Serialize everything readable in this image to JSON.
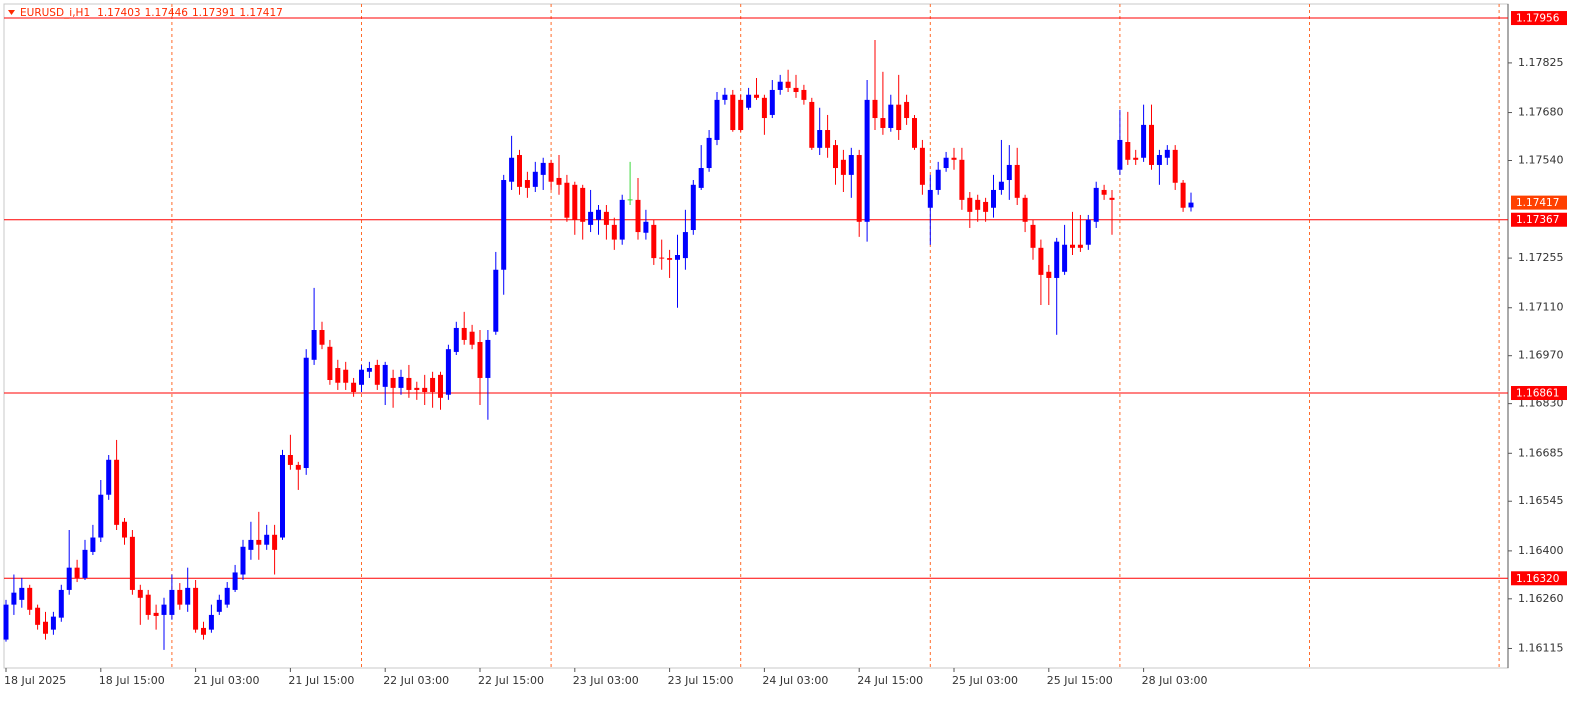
{
  "chart_data": {
    "type": "candlestick",
    "symbol": "EURUSD_i,H1",
    "candles": [
      {
        "o": 1.16141,
        "h": 1.16257,
        "l": 1.16135,
        "c": 1.16243
      },
      {
        "o": 1.16243,
        "h": 1.16331,
        "l": 1.16213,
        "c": 1.16278
      },
      {
        "o": 1.16257,
        "h": 1.16321,
        "l": 1.16234,
        "c": 1.16292
      },
      {
        "o": 1.16292,
        "h": 1.16301,
        "l": 1.16213,
        "c": 1.16228
      },
      {
        "o": 1.16234,
        "h": 1.16243,
        "l": 1.1617,
        "c": 1.16184
      },
      {
        "o": 1.16193,
        "h": 1.16222,
        "l": 1.16141,
        "c": 1.16158
      },
      {
        "o": 1.1617,
        "h": 1.16222,
        "l": 1.16155,
        "c": 1.16208
      },
      {
        "o": 1.16205,
        "h": 1.16301,
        "l": 1.16193,
        "c": 1.16286
      },
      {
        "o": 1.16286,
        "h": 1.16461,
        "l": 1.16272,
        "c": 1.16351
      },
      {
        "o": 1.16351,
        "h": 1.16374,
        "l": 1.16309,
        "c": 1.16321
      },
      {
        "o": 1.16321,
        "h": 1.16432,
        "l": 1.16315,
        "c": 1.16403
      },
      {
        "o": 1.16397,
        "h": 1.16476,
        "l": 1.16388,
        "c": 1.16439
      },
      {
        "o": 1.16439,
        "h": 1.16607,
        "l": 1.16426,
        "c": 1.16564
      },
      {
        "o": 1.16564,
        "h": 1.1668,
        "l": 1.16549,
        "c": 1.16666
      },
      {
        "o": 1.16666,
        "h": 1.16724,
        "l": 1.16461,
        "c": 1.16476
      },
      {
        "o": 1.16485,
        "h": 1.16496,
        "l": 1.16418,
        "c": 1.16439
      },
      {
        "o": 1.16441,
        "h": 1.16461,
        "l": 1.16272,
        "c": 1.16286
      },
      {
        "o": 1.16286,
        "h": 1.16301,
        "l": 1.16184,
        "c": 1.16263
      },
      {
        "o": 1.16272,
        "h": 1.16286,
        "l": 1.16199,
        "c": 1.16213
      },
      {
        "o": 1.16219,
        "h": 1.16243,
        "l": 1.1617,
        "c": 1.1621
      },
      {
        "o": 1.16213,
        "h": 1.16263,
        "l": 1.16111,
        "c": 1.16243
      },
      {
        "o": 1.16213,
        "h": 1.16331,
        "l": 1.16199,
        "c": 1.16286
      },
      {
        "o": 1.16286,
        "h": 1.16306,
        "l": 1.16228,
        "c": 1.16243
      },
      {
        "o": 1.16243,
        "h": 1.16351,
        "l": 1.16222,
        "c": 1.16292
      },
      {
        "o": 1.16292,
        "h": 1.16315,
        "l": 1.16161,
        "c": 1.1617
      },
      {
        "o": 1.16175,
        "h": 1.16193,
        "l": 1.16141,
        "c": 1.16155
      },
      {
        "o": 1.1617,
        "h": 1.16243,
        "l": 1.16161,
        "c": 1.16213
      },
      {
        "o": 1.16222,
        "h": 1.16272,
        "l": 1.16213,
        "c": 1.16257
      },
      {
        "o": 1.16243,
        "h": 1.16309,
        "l": 1.16234,
        "c": 1.16292
      },
      {
        "o": 1.16286,
        "h": 1.16359,
        "l": 1.1628,
        "c": 1.16337
      },
      {
        "o": 1.16331,
        "h": 1.16432,
        "l": 1.16315,
        "c": 1.16412
      },
      {
        "o": 1.16403,
        "h": 1.16485,
        "l": 1.16374,
        "c": 1.16432
      },
      {
        "o": 1.16432,
        "h": 1.16514,
        "l": 1.16374,
        "c": 1.16418
      },
      {
        "o": 1.16418,
        "h": 1.16476,
        "l": 1.16403,
        "c": 1.16447
      },
      {
        "o": 1.16447,
        "h": 1.16476,
        "l": 1.16331,
        "c": 1.16403
      },
      {
        "o": 1.16439,
        "h": 1.16695,
        "l": 1.16432,
        "c": 1.1668
      },
      {
        "o": 1.1668,
        "h": 1.16739,
        "l": 1.16637,
        "c": 1.16651
      },
      {
        "o": 1.16651,
        "h": 1.1666,
        "l": 1.16578,
        "c": 1.16637
      },
      {
        "o": 1.16642,
        "h": 1.16989,
        "l": 1.16622,
        "c": 1.16964
      },
      {
        "o": 1.16958,
        "h": 1.17168,
        "l": 1.16943,
        "c": 1.17045
      },
      {
        "o": 1.17045,
        "h": 1.17069,
        "l": 1.16989,
        "c": 1.17002
      },
      {
        "o": 1.16996,
        "h": 1.17016,
        "l": 1.16885,
        "c": 1.16899
      },
      {
        "o": 1.16934,
        "h": 1.16958,
        "l": 1.1687,
        "c": 1.16891
      },
      {
        "o": 1.16929,
        "h": 1.16952,
        "l": 1.1687,
        "c": 1.16891
      },
      {
        "o": 1.16891,
        "h": 1.16905,
        "l": 1.1685,
        "c": 1.16864
      },
      {
        "o": 1.16885,
        "h": 1.16943,
        "l": 1.16864,
        "c": 1.16929
      },
      {
        "o": 1.16923,
        "h": 1.16952,
        "l": 1.16905,
        "c": 1.16934
      },
      {
        "o": 1.16943,
        "h": 1.16958,
        "l": 1.1687,
        "c": 1.16885
      },
      {
        "o": 1.16879,
        "h": 1.16952,
        "l": 1.16826,
        "c": 1.16943
      },
      {
        "o": 1.16905,
        "h": 1.16929,
        "l": 1.16818,
        "c": 1.16876
      },
      {
        "o": 1.16876,
        "h": 1.16929,
        "l": 1.16856,
        "c": 1.16908
      },
      {
        "o": 1.16905,
        "h": 1.16943,
        "l": 1.16847,
        "c": 1.1687
      },
      {
        "o": 1.16876,
        "h": 1.16894,
        "l": 1.16841,
        "c": 1.1687
      },
      {
        "o": 1.16876,
        "h": 1.16914,
        "l": 1.16826,
        "c": 1.16864
      },
      {
        "o": 1.16905,
        "h": 1.16923,
        "l": 1.16818,
        "c": 1.16864
      },
      {
        "o": 1.16914,
        "h": 1.16923,
        "l": 1.16812,
        "c": 1.16847
      },
      {
        "o": 1.16856,
        "h": 1.17002,
        "l": 1.16841,
        "c": 1.16989
      },
      {
        "o": 1.16981,
        "h": 1.17069,
        "l": 1.16972,
        "c": 1.17051
      },
      {
        "o": 1.17051,
        "h": 1.17098,
        "l": 1.17002,
        "c": 1.17016
      },
      {
        "o": 1.1704,
        "h": 1.1706,
        "l": 1.16989,
        "c": 1.17002
      },
      {
        "o": 1.1701,
        "h": 1.17045,
        "l": 1.16826,
        "c": 1.16905
      },
      {
        "o": 1.16905,
        "h": 1.17045,
        "l": 1.16783,
        "c": 1.17016
      },
      {
        "o": 1.1704,
        "h": 1.17273,
        "l": 1.17031,
        "c": 1.17221
      },
      {
        "o": 1.17221,
        "h": 1.17498,
        "l": 1.17148,
        "c": 1.17483
      },
      {
        "o": 1.17478,
        "h": 1.17612,
        "l": 1.17454,
        "c": 1.17548
      },
      {
        "o": 1.17556,
        "h": 1.17571,
        "l": 1.1744,
        "c": 1.17463
      },
      {
        "o": 1.17483,
        "h": 1.17507,
        "l": 1.17431,
        "c": 1.1746
      },
      {
        "o": 1.17463,
        "h": 1.17536,
        "l": 1.17448,
        "c": 1.17507
      },
      {
        "o": 1.17498,
        "h": 1.17548,
        "l": 1.17454,
        "c": 1.17533
      },
      {
        "o": 1.17533,
        "h": 1.17542,
        "l": 1.17454,
        "c": 1.17478
      },
      {
        "o": 1.17489,
        "h": 1.17556,
        "l": 1.1744,
        "c": 1.17469
      },
      {
        "o": 1.17475,
        "h": 1.17498,
        "l": 1.17361,
        "c": 1.17373
      },
      {
        "o": 1.17469,
        "h": 1.17478,
        "l": 1.17323,
        "c": 1.17367
      },
      {
        "o": 1.1746,
        "h": 1.17469,
        "l": 1.17309,
        "c": 1.17361
      },
      {
        "o": 1.17352,
        "h": 1.17454,
        "l": 1.17331,
        "c": 1.1739
      },
      {
        "o": 1.17367,
        "h": 1.1741,
        "l": 1.17323,
        "c": 1.17396
      },
      {
        "o": 1.1739,
        "h": 1.1741,
        "l": 1.17309,
        "c": 1.17352
      },
      {
        "o": 1.17352,
        "h": 1.17373,
        "l": 1.17279,
        "c": 1.17309
      },
      {
        "o": 1.17309,
        "h": 1.1744,
        "l": 1.17294,
        "c": 1.17425
      },
      {
        "o": 1.17425,
        "h": 1.17536,
        "l": 1.1741,
        "c": 1.17425
      },
      {
        "o": 1.17425,
        "h": 1.17489,
        "l": 1.17309,
        "c": 1.17331
      },
      {
        "o": 1.17329,
        "h": 1.17396,
        "l": 1.17309,
        "c": 1.17361
      },
      {
        "o": 1.17352,
        "h": 1.17367,
        "l": 1.17235,
        "c": 1.17255
      },
      {
        "o": 1.17255,
        "h": 1.17309,
        "l": 1.17221,
        "c": 1.17253
      },
      {
        "o": 1.17255,
        "h": 1.17279,
        "l": 1.17197,
        "c": 1.1725
      },
      {
        "o": 1.1725,
        "h": 1.17323,
        "l": 1.1711,
        "c": 1.17264
      },
      {
        "o": 1.17255,
        "h": 1.17396,
        "l": 1.17221,
        "c": 1.17331
      },
      {
        "o": 1.17337,
        "h": 1.17483,
        "l": 1.17323,
        "c": 1.17469
      },
      {
        "o": 1.1746,
        "h": 1.17585,
        "l": 1.17454,
        "c": 1.17518
      },
      {
        "o": 1.17518,
        "h": 1.17629,
        "l": 1.17507,
        "c": 1.17606
      },
      {
        "o": 1.176,
        "h": 1.1774,
        "l": 1.17585,
        "c": 1.17717
      },
      {
        "o": 1.17717,
        "h": 1.17752,
        "l": 1.17703,
        "c": 1.17732
      },
      {
        "o": 1.17732,
        "h": 1.17746,
        "l": 1.17624,
        "c": 1.17629
      },
      {
        "o": 1.17717,
        "h": 1.17732,
        "l": 1.17624,
        "c": 1.17629
      },
      {
        "o": 1.17694,
        "h": 1.17752,
        "l": 1.17688,
        "c": 1.17732
      },
      {
        "o": 1.17732,
        "h": 1.17781,
        "l": 1.17717,
        "c": 1.17723
      },
      {
        "o": 1.17723,
        "h": 1.17732,
        "l": 1.17615,
        "c": 1.17664
      },
      {
        "o": 1.17673,
        "h": 1.17775,
        "l": 1.17664,
        "c": 1.17746
      },
      {
        "o": 1.17746,
        "h": 1.1779,
        "l": 1.17732,
        "c": 1.1777
      },
      {
        "o": 1.1777,
        "h": 1.17805,
        "l": 1.1774,
        "c": 1.17752
      },
      {
        "o": 1.17752,
        "h": 1.1779,
        "l": 1.17723,
        "c": 1.1774
      },
      {
        "o": 1.17746,
        "h": 1.17761,
        "l": 1.17703,
        "c": 1.17717
      },
      {
        "o": 1.17711,
        "h": 1.17723,
        "l": 1.17571,
        "c": 1.17577
      },
      {
        "o": 1.17577,
        "h": 1.17694,
        "l": 1.17556,
        "c": 1.17629
      },
      {
        "o": 1.17629,
        "h": 1.17673,
        "l": 1.17548,
        "c": 1.17577
      },
      {
        "o": 1.17585,
        "h": 1.176,
        "l": 1.17469,
        "c": 1.17518
      },
      {
        "o": 1.17542,
        "h": 1.17571,
        "l": 1.17448,
        "c": 1.17498
      },
      {
        "o": 1.17498,
        "h": 1.17577,
        "l": 1.17431,
        "c": 1.17556
      },
      {
        "o": 1.17556,
        "h": 1.17571,
        "l": 1.17317,
        "c": 1.17361
      },
      {
        "o": 1.17361,
        "h": 1.17775,
        "l": 1.17303,
        "c": 1.17717
      },
      {
        "o": 1.17717,
        "h": 1.17892,
        "l": 1.17629,
        "c": 1.17664
      },
      {
        "o": 1.17664,
        "h": 1.17799,
        "l": 1.17615,
        "c": 1.17635
      },
      {
        "o": 1.17635,
        "h": 1.17732,
        "l": 1.17624,
        "c": 1.17703
      },
      {
        "o": 1.17703,
        "h": 1.1779,
        "l": 1.176,
        "c": 1.17629
      },
      {
        "o": 1.17711,
        "h": 1.17732,
        "l": 1.17644,
        "c": 1.17664
      },
      {
        "o": 1.17664,
        "h": 1.17673,
        "l": 1.17571,
        "c": 1.17577
      },
      {
        "o": 1.17577,
        "h": 1.176,
        "l": 1.1744,
        "c": 1.17469
      },
      {
        "o": 1.17402,
        "h": 1.17498,
        "l": 1.17294,
        "c": 1.17454
      },
      {
        "o": 1.17454,
        "h": 1.17536,
        "l": 1.1744,
        "c": 1.17513
      },
      {
        "o": 1.17518,
        "h": 1.17565,
        "l": 1.17507,
        "c": 1.17548
      },
      {
        "o": 1.17548,
        "h": 1.17577,
        "l": 1.17513,
        "c": 1.17542
      },
      {
        "o": 1.17542,
        "h": 1.17577,
        "l": 1.17396,
        "c": 1.17425
      },
      {
        "o": 1.17431,
        "h": 1.17448,
        "l": 1.17343,
        "c": 1.1739
      },
      {
        "o": 1.17425,
        "h": 1.1744,
        "l": 1.17361,
        "c": 1.17396
      },
      {
        "o": 1.17419,
        "h": 1.17431,
        "l": 1.17361,
        "c": 1.1739
      },
      {
        "o": 1.17402,
        "h": 1.17498,
        "l": 1.17373,
        "c": 1.17454
      },
      {
        "o": 1.17454,
        "h": 1.176,
        "l": 1.1744,
        "c": 1.17478
      },
      {
        "o": 1.17483,
        "h": 1.17585,
        "l": 1.17425,
        "c": 1.17527
      },
      {
        "o": 1.17527,
        "h": 1.17577,
        "l": 1.1741,
        "c": 1.17431
      },
      {
        "o": 1.17431,
        "h": 1.1744,
        "l": 1.17331,
        "c": 1.17361
      },
      {
        "o": 1.17352,
        "h": 1.17367,
        "l": 1.1725,
        "c": 1.17285
      },
      {
        "o": 1.17285,
        "h": 1.17309,
        "l": 1.17118,
        "c": 1.17206
      },
      {
        "o": 1.17215,
        "h": 1.17235,
        "l": 1.17118,
        "c": 1.17197
      },
      {
        "o": 1.17197,
        "h": 1.17314,
        "l": 1.17031,
        "c": 1.17303
      },
      {
        "o": 1.17215,
        "h": 1.17352,
        "l": 1.17206,
        "c": 1.17294
      },
      {
        "o": 1.17294,
        "h": 1.1739,
        "l": 1.17264,
        "c": 1.17285
      },
      {
        "o": 1.17294,
        "h": 1.17381,
        "l": 1.17273,
        "c": 1.17285
      },
      {
        "o": 1.17294,
        "h": 1.17381,
        "l": 1.17279,
        "c": 1.17367
      },
      {
        "o": 1.17361,
        "h": 1.17478,
        "l": 1.17343,
        "c": 1.1746
      },
      {
        "o": 1.17454,
        "h": 1.17469,
        "l": 1.17425,
        "c": 1.1744
      },
      {
        "o": 1.17431,
        "h": 1.17454,
        "l": 1.17323,
        "c": 1.17425
      },
      {
        "o": 1.17513,
        "h": 1.17688,
        "l": 1.17498,
        "c": 1.176
      },
      {
        "o": 1.17594,
        "h": 1.17682,
        "l": 1.17527,
        "c": 1.17542
      },
      {
        "o": 1.17548,
        "h": 1.17571,
        "l": 1.17527,
        "c": 1.17542
      },
      {
        "o": 1.17548,
        "h": 1.17703,
        "l": 1.17536,
        "c": 1.17644
      },
      {
        "o": 1.17644,
        "h": 1.17703,
        "l": 1.17513,
        "c": 1.17527
      },
      {
        "o": 1.17527,
        "h": 1.17571,
        "l": 1.17469,
        "c": 1.17556
      },
      {
        "o": 1.17548,
        "h": 1.17585,
        "l": 1.17527,
        "c": 1.17571
      },
      {
        "o": 1.17571,
        "h": 1.17585,
        "l": 1.17454,
        "c": 1.17475
      },
      {
        "o": 1.17475,
        "h": 1.17483,
        "l": 1.1739,
        "c": 1.17402
      },
      {
        "o": 1.17403,
        "h": 1.17446,
        "l": 1.17391,
        "c": 1.17417
      }
    ],
    "categories": [
      "18 Jul 2025",
      null,
      null,
      null,
      null,
      null,
      null,
      null,
      null,
      null,
      null,
      null,
      "18 Jul 15:00",
      null,
      null,
      null,
      null,
      null,
      null,
      null,
      null,
      null,
      null,
      null,
      "21 Jul 03:00",
      null,
      null,
      null,
      null,
      null,
      null,
      null,
      null,
      null,
      null,
      null,
      "21 Jul 15:00",
      null,
      null,
      null,
      null,
      null,
      null,
      null,
      null,
      null,
      null,
      null,
      "22 Jul 03:00",
      null,
      null,
      null,
      null,
      null,
      null,
      null,
      null,
      null,
      null,
      null,
      "22 Jul 15:00",
      null,
      null,
      null,
      null,
      null,
      null,
      null,
      null,
      null,
      null,
      null,
      "23 Jul 03:00",
      null,
      null,
      null,
      null,
      null,
      null,
      null,
      null,
      null,
      null,
      null,
      "23 Jul 15:00",
      null,
      null,
      null,
      null,
      null,
      null,
      null,
      null,
      null,
      null,
      null,
      "24 Jul 03:00",
      null,
      null,
      null,
      null,
      null,
      null,
      null,
      null,
      null,
      null,
      null,
      "24 Jul 15:00",
      null,
      null,
      null,
      null,
      null,
      null,
      null,
      null,
      null,
      null,
      null,
      "25 Jul 03:00",
      null,
      null,
      null,
      null,
      null,
      null,
      null,
      null,
      null,
      null,
      null,
      "25 Jul 15:00",
      null,
      null,
      null,
      null,
      null,
      null,
      null,
      null,
      null,
      null,
      null,
      "28 Jul 03:00",
      null,
      null,
      null,
      null,
      null,
      null
    ],
    "ylim": [
      1.16058,
      1.17997
    ],
    "yticks": [
      1.17825,
      {
        "value": 1.1768,
        "label": "1.17680"
      },
      {
        "value": 1.1754,
        "label": "1.17540"
      },
      1.17255,
      {
        "value": 1.1711,
        "label": "1.17110"
      },
      {
        "value": 1.1697,
        "label": "1.16970"
      },
      {
        "value": 1.1683,
        "label": "1.16830"
      },
      1.16685,
      1.16545,
      {
        "value": 1.164,
        "label": "1.16400"
      },
      {
        "value": 1.1626,
        "label": "1.16260"
      },
      1.16115
    ],
    "levels": [
      1.17956,
      1.17367,
      1.16861,
      {
        "value": 1.1632,
        "label": "1.16320"
      }
    ],
    "up_color": "#0000ff",
    "down_color": "#ff0000",
    "doji_color": "#3cd83c",
    "level_color": "#ff0000",
    "price_label_color": "#ff4000",
    "grid_color": "#ff6a2a",
    "grid": true
  }
}
